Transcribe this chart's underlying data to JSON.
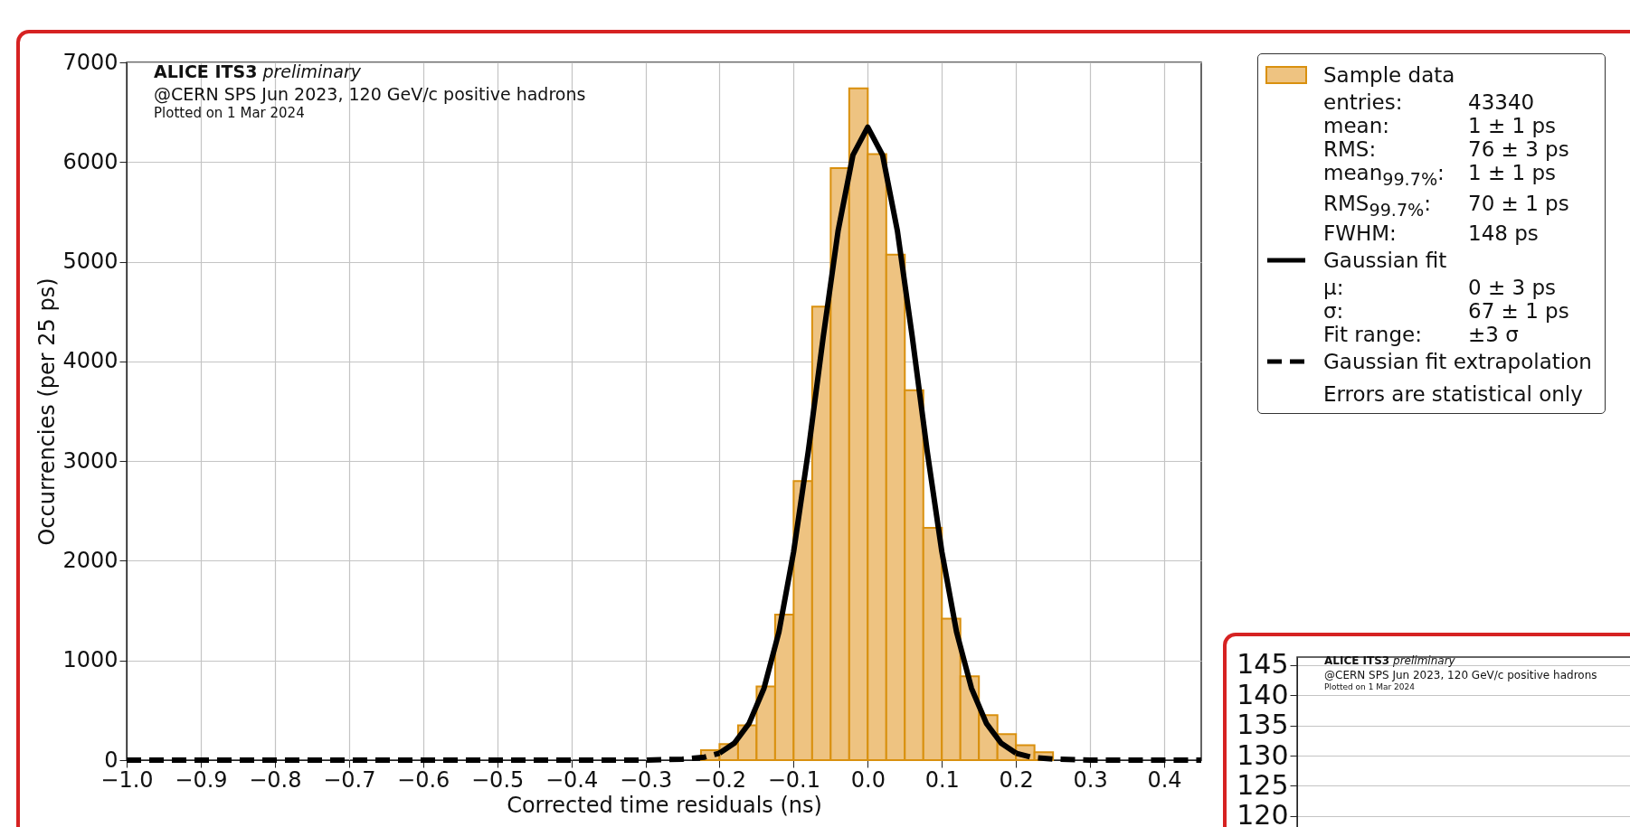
{
  "chart_data": [
    {
      "type": "histogram",
      "xlabel": "Corrected time residuals (ns)",
      "ylabel": "Occurrencies (per 25 ps)",
      "xlim": [
        -1.0,
        0.45
      ],
      "ylim": [
        0,
        7000
      ],
      "xticks": [
        {
          "value": -1.0,
          "label": "−1.0"
        },
        {
          "value": -0.9,
          "label": "−0.9"
        },
        {
          "value": -0.8,
          "label": "−0.8"
        },
        {
          "value": -0.7,
          "label": "−0.7"
        },
        {
          "value": -0.6,
          "label": "−0.6"
        },
        {
          "value": -0.5,
          "label": "−0.5"
        },
        {
          "value": -0.4,
          "label": "−0.4"
        },
        {
          "value": -0.3,
          "label": "−0.3"
        },
        {
          "value": -0.2,
          "label": "−0.2"
        },
        {
          "value": -0.1,
          "label": "−0.1"
        },
        {
          "value": 0,
          "label": "0.0"
        },
        {
          "value": 0.1,
          "label": "0.1"
        },
        {
          "value": 0.2,
          "label": "0.2"
        },
        {
          "value": 0.3,
          "label": "0.3"
        },
        {
          "value": 0.4,
          "label": "0.4"
        }
      ],
      "yticks": [
        0,
        1000,
        2000,
        3000,
        4000,
        5000,
        6000,
        7000
      ],
      "grid": true,
      "legend": "top right",
      "series": [
        {
          "type": "histogram",
          "name": "Sample data",
          "color": "#eec381",
          "bins": [
            -0.275,
            -0.25,
            -0.225,
            -0.2,
            -0.175,
            -0.15,
            -0.125,
            -0.1,
            -0.075,
            -0.05,
            -0.025,
            0,
            0.025,
            0.05,
            0.075,
            0.1,
            0.125,
            0.15,
            0.175,
            0.2,
            0.225,
            0.25,
            0.275,
            0.3
          ],
          "values": [
            null,
            null,
            100,
            160,
            350,
            740,
            1460,
            2800,
            4550,
            5940,
            6740,
            6080,
            5070,
            3710,
            2330,
            1420,
            840,
            450,
            260,
            150,
            80,
            null,
            null
          ]
        },
        {
          "type": "line",
          "name": "Gaussian fit",
          "color": "#000000",
          "line_style": "solid",
          "x": [
            -0.2,
            -0.18,
            -0.16,
            -0.14,
            -0.12,
            -0.1,
            -0.08,
            -0.06,
            -0.04,
            -0.02,
            0,
            0.02,
            0.04,
            0.06,
            0.08,
            0.1,
            0.12,
            0.14,
            0.16,
            0.18,
            0.2
          ],
          "values": [
            70,
            170,
            370,
            720,
            1280,
            2090,
            3110,
            4250,
            5310,
            6070,
            6350,
            6070,
            5310,
            4250,
            3110,
            2090,
            1280,
            720,
            370,
            170,
            70
          ]
        },
        {
          "type": "line",
          "name": "Gaussian fit extrapolation",
          "color": "#000000",
          "line_style": "dashed",
          "x": [
            -1.0,
            -0.3,
            -0.25,
            -0.22,
            -0.2,
            0,
            0.2,
            0.22,
            0.25,
            0.3,
            0.45
          ],
          "values": [
            0,
            0,
            10,
            30,
            70,
            null,
            70,
            30,
            10,
            0,
            0
          ]
        }
      ],
      "annotations": [
        "ALICE ITS3",
        "preliminary",
        "@CERN SPS Jun 2023, 120 GeV/c positive hadrons",
        "Plotted on 1 Mar 2024",
        "entries:\t43340",
        "mean:\t1 ± 1 ps",
        "RMS:\t76 ± 3 ps",
        "mean$_{99.7%}$:\t1 ± 1 ps",
        "RMS$_{99.7%}$:\t70 ± 1 ps",
        "FWHM:\t148 ps",
        "μ:\t0 ± 3 ps",
        "σ:\t67 ± 1 ps",
        "Fit range:\t±3 σ",
        "Errors are statistical only"
      ]
    },
    {
      "type": "line",
      "categories": [
        null
      ],
      "values": [
        null
      ],
      "ylim": [
        117,
        146.3
      ],
      "yticks": [
        120,
        125,
        130,
        135,
        140,
        145
      ],
      "grid": true,
      "tick_labels": "y",
      "annotations": [
        "ALICE ITS3",
        "preliminary",
        "@CERN SPS Jun 2023, 120 GeV/c positive hadrons",
        "Plotted on 1 Mar 2024"
      ]
    }
  ]
}
